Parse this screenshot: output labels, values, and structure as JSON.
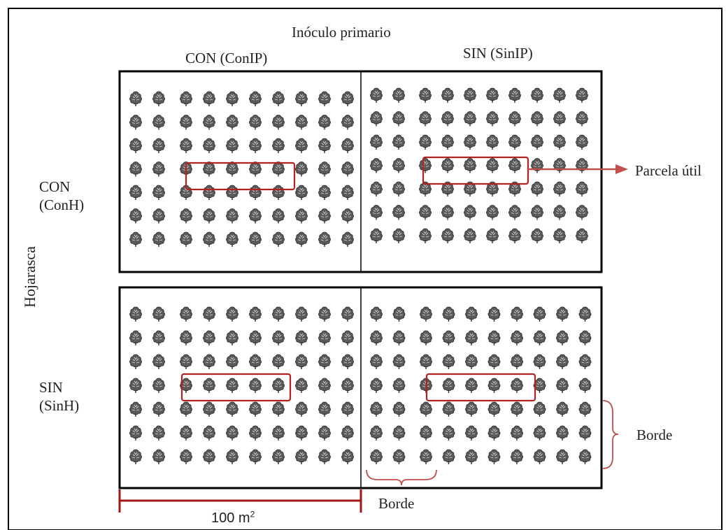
{
  "factors": {
    "column_title": "Inóculo primario",
    "row_title": "Hojarasca"
  },
  "columns": [
    {
      "label": "CON (ConIP)"
    },
    {
      "label": "SIN (SinIP)"
    }
  ],
  "rows": [
    {
      "line1": "CON",
      "line2": "(ConH)"
    },
    {
      "line1": "SIN",
      "line2": "(SinH)"
    }
  ],
  "annotations": {
    "useful_plot": "Parcela útil",
    "border_right": "Borde",
    "border_bottom": "Borde"
  },
  "scale": {
    "value": "100 m",
    "exponent": "2"
  },
  "colors": {
    "frame": "#000000",
    "highlight": "#b22222",
    "tree": "#4a4a4a"
  },
  "grid": {
    "tree_rows_per_plot": 7,
    "tree_cols_per_plot": 10,
    "useful_plot_row": 4,
    "useful_plot_cols": [
      3,
      7
    ]
  }
}
